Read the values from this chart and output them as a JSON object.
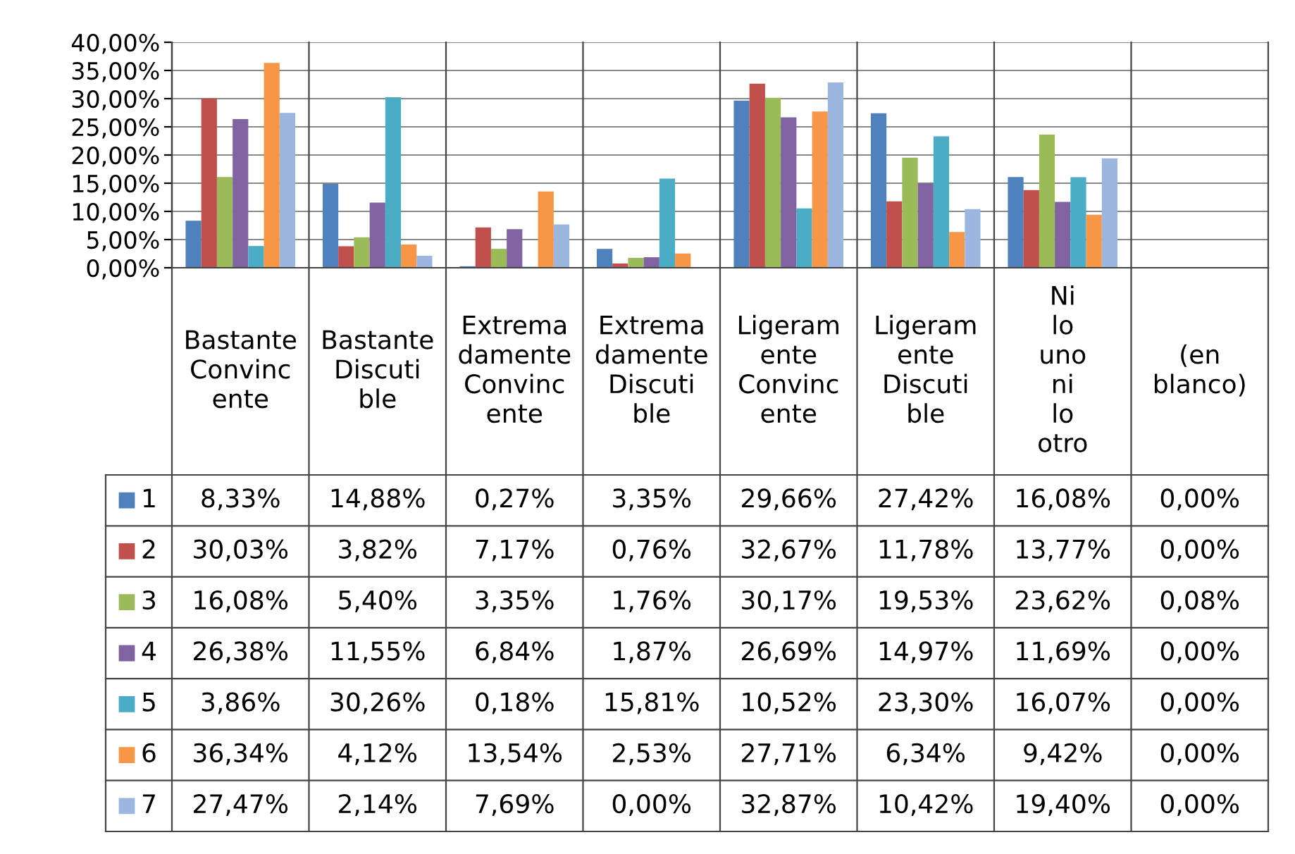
{
  "chart_data": {
    "type": "bar",
    "categories": [
      "Bastante Convincente",
      "Bastante Discutible",
      "Extremadamente Convincente",
      "Extremadamente Discutible",
      "Ligeramente Convincente",
      "Ligeramente Discutible",
      "Ni lo uno ni lo otro",
      "(en blanco)"
    ],
    "series": [
      {
        "name": "1",
        "color": "#4f81bd",
        "values": [
          8.33,
          14.88,
          0.27,
          3.35,
          29.66,
          27.42,
          16.08,
          0.0
        ],
        "value_labels": [
          "8,33%",
          "14,88%",
          "0,27%",
          "3,35%",
          "29,66%",
          "27,42%",
          "16,08%",
          "0,00%"
        ]
      },
      {
        "name": "2",
        "color": "#c0504d",
        "values": [
          30.03,
          3.82,
          7.17,
          0.76,
          32.67,
          11.78,
          13.77,
          0.0
        ],
        "value_labels": [
          "30,03%",
          "3,82%",
          "7,17%",
          "0,76%",
          "32,67%",
          "11,78%",
          "13,77%",
          "0,00%"
        ]
      },
      {
        "name": "3",
        "color": "#9bbb59",
        "values": [
          16.08,
          5.4,
          3.35,
          1.76,
          30.17,
          19.53,
          23.62,
          0.08
        ],
        "value_labels": [
          "16,08%",
          "5,40%",
          "3,35%",
          "1,76%",
          "30,17%",
          "19,53%",
          "23,62%",
          "0,08%"
        ]
      },
      {
        "name": "4",
        "color": "#8064a2",
        "values": [
          26.38,
          11.55,
          6.84,
          1.87,
          26.69,
          14.97,
          11.69,
          0.0
        ],
        "value_labels": [
          "26,38%",
          "11,55%",
          "6,84%",
          "1,87%",
          "26,69%",
          "14,97%",
          "11,69%",
          "0,00%"
        ]
      },
      {
        "name": "5",
        "color": "#4bacc6",
        "values": [
          3.86,
          30.26,
          0.18,
          15.81,
          10.52,
          23.3,
          16.07,
          0.0
        ],
        "value_labels": [
          "3,86%",
          "30,26%",
          "0,18%",
          "15,81%",
          "10,52%",
          "23,30%",
          "16,07%",
          "0,00%"
        ]
      },
      {
        "name": "6",
        "color": "#f79646",
        "values": [
          36.34,
          4.12,
          13.54,
          2.53,
          27.71,
          6.34,
          9.42,
          0.0
        ],
        "value_labels": [
          "36,34%",
          "4,12%",
          "13,54%",
          "2,53%",
          "27,71%",
          "6,34%",
          "9,42%",
          "0,00%"
        ]
      },
      {
        "name": "7",
        "color": "#9bb7e0",
        "values": [
          27.47,
          2.14,
          7.69,
          0.0,
          32.87,
          10.42,
          19.4,
          0.0
        ],
        "value_labels": [
          "27,47%",
          "2,14%",
          "7,69%",
          "0,00%",
          "32,87%",
          "10,42%",
          "19,40%",
          "0,00%"
        ]
      }
    ],
    "ylim": [
      0,
      40
    ],
    "yticks": [
      {
        "value": 0,
        "label": "0,00%"
      },
      {
        "value": 5,
        "label": "5,00%"
      },
      {
        "value": 10,
        "label": "10,00%"
      },
      {
        "value": 15,
        "label": "15,00%"
      },
      {
        "value": 20,
        "label": "20,00%"
      },
      {
        "value": 25,
        "label": "25,00%"
      },
      {
        "value": 30,
        "label": "30,00%"
      },
      {
        "value": 35,
        "label": "35,00%"
      },
      {
        "value": 40,
        "label": "40,00%"
      }
    ],
    "grid": "y",
    "legend": "bottom"
  }
}
